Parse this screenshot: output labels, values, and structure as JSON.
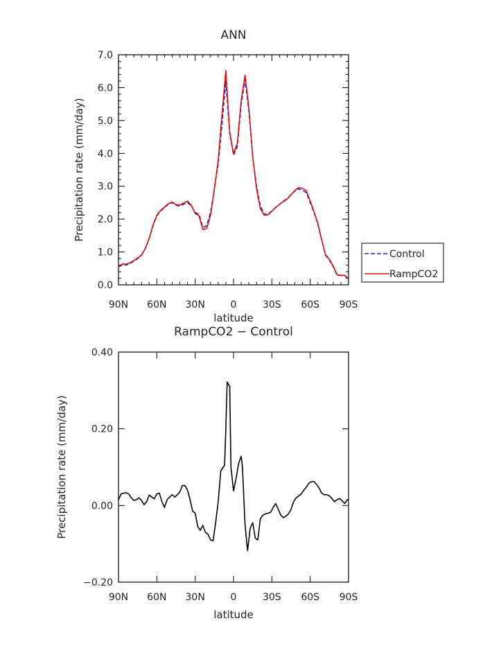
{
  "chart_data": [
    {
      "type": "line",
      "title": "ANN",
      "xlabel": "latitude",
      "ylabel": "Precipitation rate (mm/day)",
      "xlim": [
        90,
        -90
      ],
      "ylim": [
        0.0,
        7.0
      ],
      "x_ticks": [
        {
          "value": 90,
          "label": "90N"
        },
        {
          "value": 60,
          "label": "60N"
        },
        {
          "value": 30,
          "label": "30N"
        },
        {
          "value": 0,
          "label": "0"
        },
        {
          "value": -30,
          "label": "30S"
        },
        {
          "value": -60,
          "label": "60S"
        },
        {
          "value": -90,
          "label": "90S"
        }
      ],
      "y_ticks": [
        {
          "value": 0.0,
          "label": "0.0"
        },
        {
          "value": 1.0,
          "label": "1.0"
        },
        {
          "value": 2.0,
          "label": "2.0"
        },
        {
          "value": 3.0,
          "label": "3.0"
        },
        {
          "value": 4.0,
          "label": "4.0"
        },
        {
          "value": 5.0,
          "label": "5.0"
        },
        {
          "value": 6.0,
          "label": "6.0"
        },
        {
          "value": 7.0,
          "label": "7.0"
        }
      ],
      "legend": {
        "position": "right",
        "entries": [
          "Control",
          "RampCO2"
        ]
      },
      "series": [
        {
          "name": "Control",
          "color": "#2222cc",
          "dash": "dashed",
          "x": [
            90,
            87,
            84,
            81,
            78,
            75,
            72,
            69,
            66,
            63,
            60,
            57,
            54,
            51,
            48,
            45,
            42,
            39,
            36,
            33,
            30,
            27,
            24,
            21,
            18,
            15,
            12,
            9,
            6,
            3,
            0,
            -3,
            -6,
            -9,
            -12,
            -15,
            -18,
            -21,
            -24,
            -27,
            -30,
            -33,
            -36,
            -39,
            -42,
            -45,
            -48,
            -51,
            -54,
            -57,
            -60,
            -63,
            -66,
            -69,
            -72,
            -75,
            -78,
            -81,
            -84,
            -87,
            -90
          ],
          "y": [
            0.55,
            0.6,
            0.6,
            0.65,
            0.72,
            0.8,
            0.9,
            1.1,
            1.4,
            1.8,
            2.1,
            2.25,
            2.35,
            2.45,
            2.5,
            2.42,
            2.4,
            2.45,
            2.5,
            2.4,
            2.2,
            2.15,
            1.75,
            1.8,
            2.2,
            2.9,
            3.7,
            4.9,
            6.2,
            4.6,
            3.95,
            4.2,
            5.5,
            6.25,
            5.3,
            3.9,
            3.0,
            2.4,
            2.15,
            2.15,
            2.25,
            2.35,
            2.45,
            2.55,
            2.62,
            2.75,
            2.85,
            2.92,
            2.88,
            2.8,
            2.5,
            2.2,
            1.85,
            1.35,
            0.9,
            0.75,
            0.55,
            0.3,
            0.28,
            0.28,
            0.18
          ]
        },
        {
          "name": "RampCO2",
          "color": "#dd1111",
          "dash": "solid",
          "x": [
            90,
            87,
            84,
            81,
            78,
            75,
            72,
            69,
            66,
            63,
            60,
            57,
            54,
            51,
            48,
            45,
            42,
            39,
            36,
            33,
            30,
            27,
            24,
            21,
            18,
            15,
            12,
            9,
            6,
            3,
            0,
            -3,
            -6,
            -9,
            -12,
            -15,
            -18,
            -21,
            -24,
            -27,
            -30,
            -33,
            -36,
            -39,
            -42,
            -45,
            -48,
            -51,
            -54,
            -57,
            -60,
            -63,
            -66,
            -69,
            -72,
            -75,
            -78,
            -81,
            -84,
            -87,
            -90
          ],
          "y": [
            0.57,
            0.63,
            0.63,
            0.67,
            0.74,
            0.82,
            0.91,
            1.11,
            1.41,
            1.82,
            2.12,
            2.27,
            2.37,
            2.47,
            2.52,
            2.44,
            2.43,
            2.49,
            2.55,
            2.42,
            2.17,
            2.1,
            1.68,
            1.72,
            2.11,
            2.9,
            3.8,
            5.2,
            6.52,
            4.65,
            3.99,
            4.31,
            5.62,
            6.38,
            5.4,
            3.9,
            2.92,
            2.32,
            2.12,
            2.13,
            2.24,
            2.36,
            2.45,
            2.53,
            2.61,
            2.74,
            2.87,
            2.96,
            2.94,
            2.86,
            2.55,
            2.22,
            1.87,
            1.36,
            0.92,
            0.78,
            0.57,
            0.31,
            0.29,
            0.29,
            0.19
          ]
        }
      ]
    },
    {
      "type": "line",
      "title": "RampCO2 − Control",
      "xlabel": "latitude",
      "ylabel": "Precipitation rate (mm/day)",
      "xlim": [
        90,
        -90
      ],
      "ylim": [
        -0.2,
        0.4
      ],
      "x_ticks": [
        {
          "value": 90,
          "label": "90N"
        },
        {
          "value": 60,
          "label": "60N"
        },
        {
          "value": 30,
          "label": "30N"
        },
        {
          "value": 0,
          "label": "0"
        },
        {
          "value": -30,
          "label": "30S"
        },
        {
          "value": -60,
          "label": "60S"
        },
        {
          "value": -90,
          "label": "90S"
        }
      ],
      "y_ticks": [
        {
          "value": -0.2,
          "label": "−0.20"
        },
        {
          "value": 0.0,
          "label": "0.00"
        },
        {
          "value": 0.2,
          "label": "0.20"
        },
        {
          "value": 0.4,
          "label": "0.40"
        }
      ],
      "series": [
        {
          "color": "#000000",
          "dash": "solid",
          "x": [
            90,
            88,
            86,
            84,
            82,
            80,
            78,
            76,
            74,
            72,
            70,
            68,
            66,
            64,
            62,
            60,
            58,
            56,
            54,
            52,
            50,
            48,
            46,
            44,
            42,
            40,
            38,
            36,
            34,
            32,
            30,
            28,
            26,
            24,
            22,
            20,
            18,
            16,
            14,
            12,
            10,
            8,
            7,
            6,
            5,
            3,
            2,
            0,
            -2,
            -4,
            -6,
            -7,
            -9,
            -11,
            -13,
            -15,
            -17,
            -19,
            -21,
            -23,
            -25,
            -27,
            -29,
            -31,
            -33,
            -35,
            -37,
            -39,
            -41,
            -43,
            -45,
            -47,
            -49,
            -51,
            -53,
            -55,
            -57,
            -59,
            -61,
            -63,
            -65,
            -67,
            -69,
            -71,
            -73,
            -75,
            -77,
            -79,
            -81,
            -83,
            -85,
            -87,
            -89,
            -90
          ],
          "y": [
            0.015,
            0.03,
            0.032,
            0.033,
            0.03,
            0.02,
            0.013,
            0.015,
            0.02,
            0.013,
            0.002,
            0.01,
            0.027,
            0.022,
            0.017,
            0.03,
            0.032,
            0.01,
            -0.005,
            0.015,
            0.022,
            0.028,
            0.022,
            0.028,
            0.035,
            0.052,
            0.052,
            0.04,
            0.015,
            -0.015,
            -0.02,
            -0.055,
            -0.065,
            -0.052,
            -0.07,
            -0.075,
            -0.09,
            -0.092,
            -0.045,
            0.01,
            0.09,
            0.1,
            0.105,
            0.2,
            0.322,
            0.31,
            0.1,
            0.038,
            0.07,
            0.11,
            0.128,
            0.1,
            -0.05,
            -0.118,
            -0.06,
            -0.045,
            -0.085,
            -0.09,
            -0.035,
            -0.025,
            -0.022,
            -0.02,
            -0.018,
            -0.005,
            0.005,
            -0.01,
            -0.025,
            -0.032,
            -0.028,
            -0.022,
            -0.01,
            0.01,
            0.02,
            0.025,
            0.03,
            0.04,
            0.048,
            0.058,
            0.062,
            0.062,
            0.055,
            0.045,
            0.032,
            0.028,
            0.028,
            0.025,
            0.018,
            0.01,
            0.015,
            0.018,
            0.012,
            0.005,
            0.015,
            0.015
          ]
        }
      ]
    }
  ]
}
